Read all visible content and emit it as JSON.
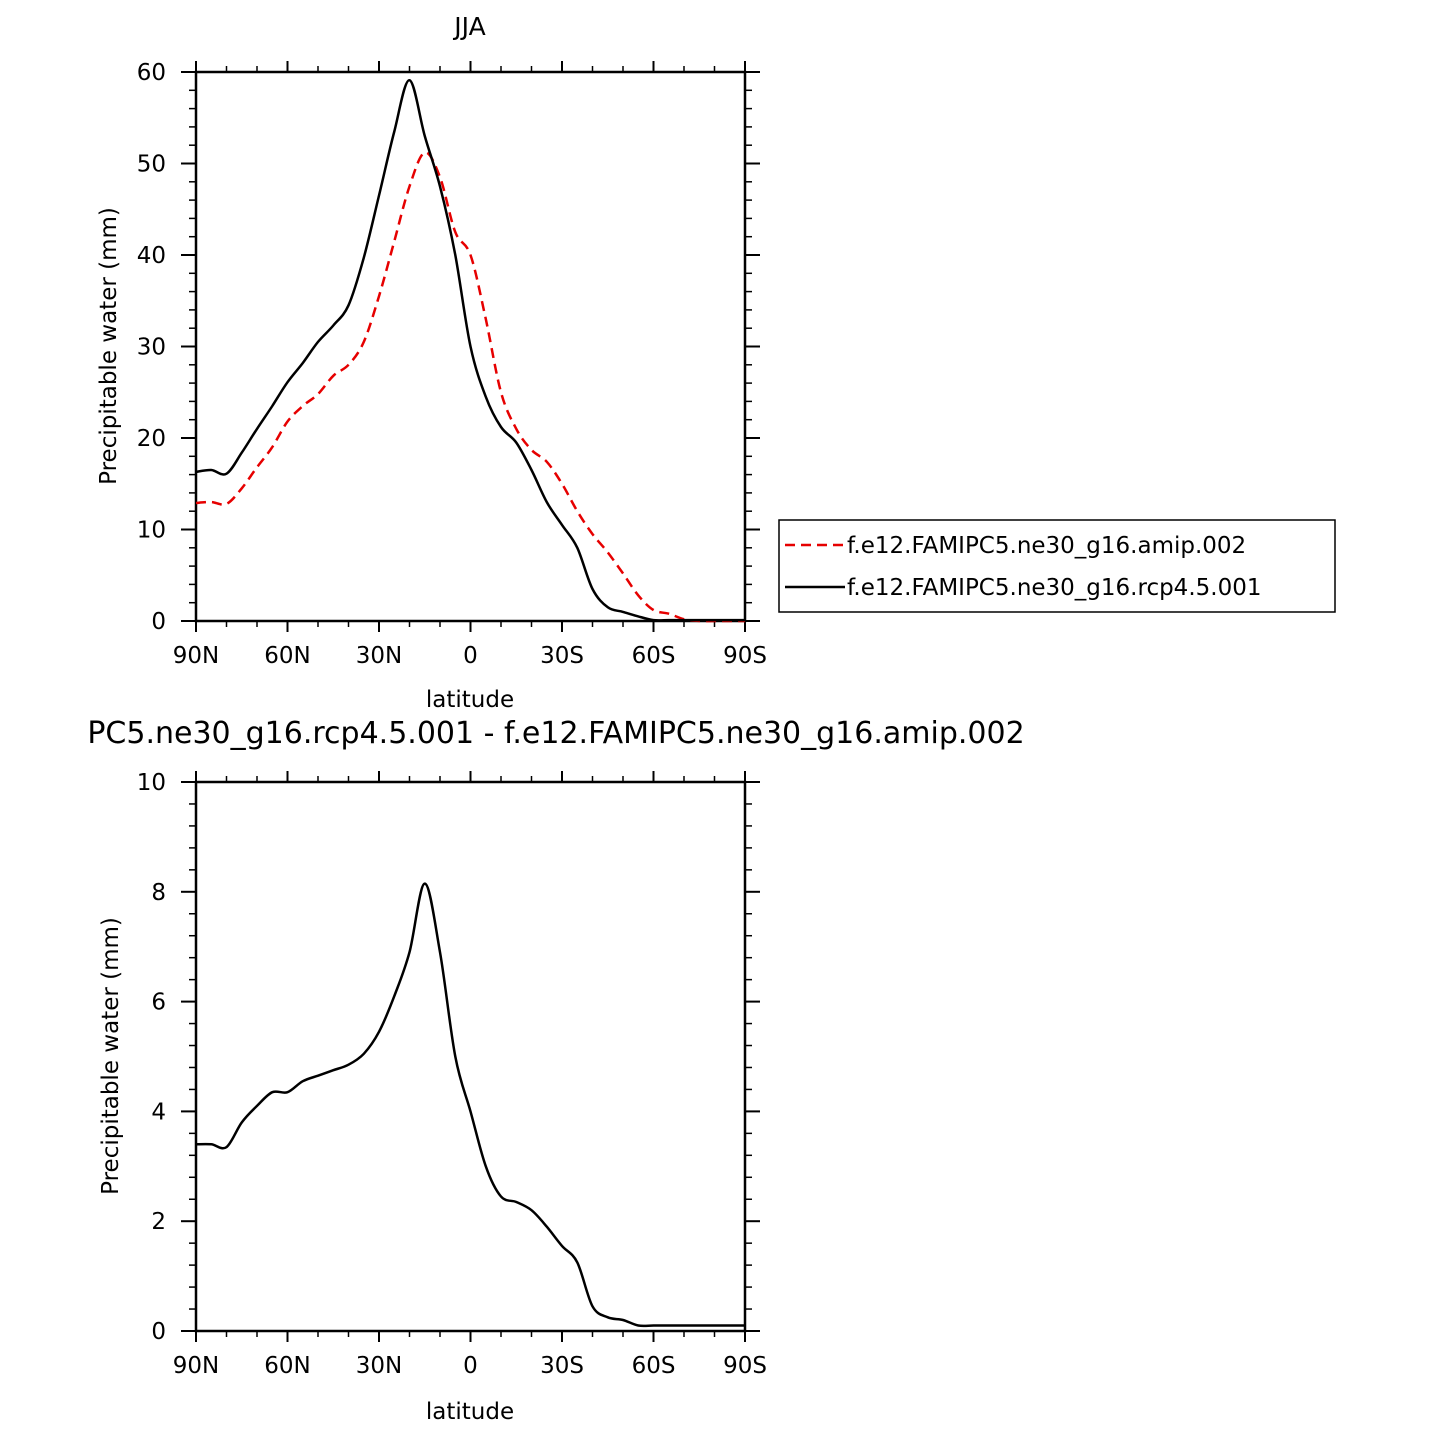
{
  "chart_data": [
    {
      "type": "line",
      "title": "JJA",
      "xlabel": "latitude",
      "ylabel": "Precipitable water (mm)",
      "xlim": [
        90,
        -90
      ],
      "ylim": [
        0,
        60
      ],
      "x_ticks": [
        90,
        60,
        30,
        0,
        -30,
        -60,
        -90
      ],
      "x_tick_labels": [
        "90N",
        "60N",
        "30N",
        "0",
        "30S",
        "60S",
        "90S"
      ],
      "y_ticks": [
        0,
        10,
        20,
        30,
        40,
        50,
        60
      ],
      "y_tick_labels": [
        "0",
        "10",
        "20",
        "30",
        "40",
        "50",
        "60"
      ],
      "legend_position": "right",
      "series": [
        {
          "name": "f.e12.FAMIPC5.ne30_g16.amip.002",
          "color": "#e60000",
          "dash": "dashed",
          "x": [
            90,
            85,
            80,
            75,
            70,
            65,
            60,
            55,
            50,
            45,
            40,
            35,
            30,
            25,
            20,
            15,
            10,
            5,
            0,
            -5,
            -10,
            -15,
            -20,
            -25,
            -30,
            -35,
            -40,
            -45,
            -50,
            -55,
            -60,
            -65,
            -70,
            -75,
            -80,
            -85,
            -90
          ],
          "y": [
            12.9,
            13.0,
            12.8,
            14.5,
            16.8,
            19.0,
            21.8,
            23.5,
            24.8,
            26.8,
            28.0,
            30.5,
            35.5,
            41.5,
            47.5,
            51.2,
            48.5,
            42.5,
            40.0,
            33.0,
            25.0,
            21.0,
            18.7,
            17.4,
            15.0,
            12.0,
            9.5,
            7.5,
            5.2,
            2.8,
            1.2,
            0.8,
            0.2,
            0.0,
            0.0,
            0.0,
            0.0
          ]
        },
        {
          "name": "f.e12.FAMIPC5.ne30_g16.rcp4.5.001",
          "color": "#000000",
          "dash": "solid",
          "x": [
            90,
            85,
            80,
            75,
            70,
            65,
            60,
            55,
            50,
            45,
            40,
            35,
            30,
            25,
            20,
            15,
            10,
            5,
            0,
            -5,
            -10,
            -15,
            -20,
            -25,
            -30,
            -35,
            -40,
            -45,
            -50,
            -55,
            -60,
            -65,
            -70,
            -75,
            -80,
            -85,
            -90
          ],
          "y": [
            16.3,
            16.5,
            16.1,
            18.4,
            21.0,
            23.5,
            26.1,
            28.2,
            30.5,
            32.3,
            34.5,
            39.7,
            46.5,
            53.5,
            59.1,
            53.0,
            47.5,
            40.0,
            30.0,
            24.5,
            21.2,
            19.5,
            16.5,
            13.0,
            10.5,
            8.0,
            3.5,
            1.5,
            1.0,
            0.5,
            0.1,
            0.1,
            0.1,
            0.1,
            0.1,
            0.1,
            0.1
          ]
        }
      ]
    },
    {
      "type": "line",
      "title": "PC5.ne30_g16.rcp4.5.001 - f.e12.FAMIPC5.ne30_g16.amip.002",
      "xlabel": "latitude",
      "ylabel": "Precipitable water (mm)",
      "xlim": [
        90,
        -90
      ],
      "ylim": [
        0,
        10
      ],
      "x_ticks": [
        90,
        60,
        30,
        0,
        -30,
        -60,
        -90
      ],
      "x_tick_labels": [
        "90N",
        "60N",
        "30N",
        "0",
        "30S",
        "60S",
        "90S"
      ],
      "y_ticks": [
        0,
        2,
        4,
        6,
        8,
        10
      ],
      "y_tick_labels": [
        "0",
        "2",
        "4",
        "6",
        "8",
        "10"
      ],
      "series": [
        {
          "color": "#000000",
          "dash": "solid",
          "x": [
            90,
            85,
            80,
            75,
            70,
            65,
            60,
            55,
            50,
            45,
            40,
            35,
            30,
            25,
            20,
            15,
            10,
            5,
            0,
            -5,
            -10,
            -15,
            -20,
            -25,
            -30,
            -35,
            -40,
            -45,
            -50,
            -55,
            -60,
            -65,
            -70,
            -75,
            -80,
            -85,
            -90
          ],
          "y": [
            3.4,
            3.4,
            3.35,
            3.8,
            4.1,
            4.35,
            4.35,
            4.55,
            4.65,
            4.75,
            4.85,
            5.05,
            5.45,
            6.1,
            6.9,
            8.15,
            6.9,
            5.0,
            4.0,
            3.0,
            2.45,
            2.35,
            2.2,
            1.9,
            1.55,
            1.25,
            0.45,
            0.25,
            0.2,
            0.1,
            0.1,
            0.1,
            0.1,
            0.1,
            0.1,
            0.1,
            0.1
          ]
        }
      ]
    }
  ]
}
